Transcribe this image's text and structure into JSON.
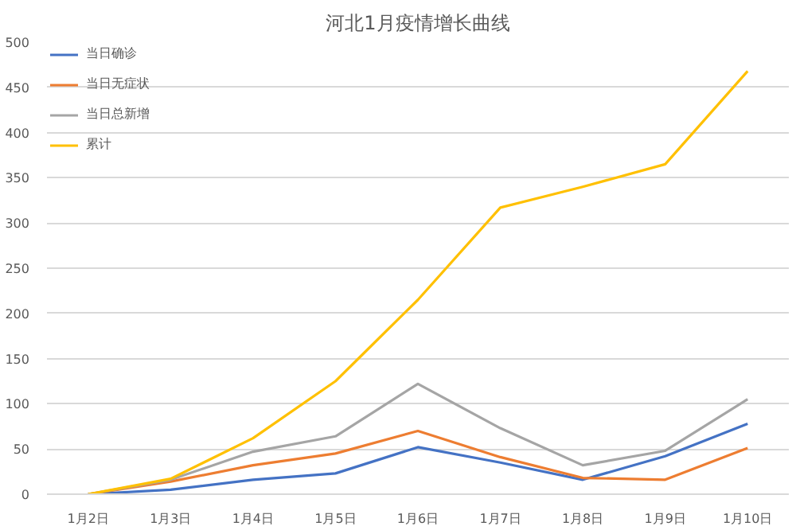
{
  "chart_data": {
    "type": "line",
    "title": "河北1月疫情增长曲线",
    "categories": [
      "1月2日",
      "1月3日",
      "1月4日",
      "1月5日",
      "1月6日",
      "1月7日",
      "1月8日",
      "1月9日",
      "1月10日"
    ],
    "series": [
      {
        "name": "当日确诊",
        "color": "#4472c4",
        "values": [
          0,
          5,
          16,
          23,
          52,
          35,
          16,
          42,
          78
        ]
      },
      {
        "name": "当日无症状",
        "color": "#ed7d31",
        "values": [
          0,
          14,
          32,
          45,
          70,
          41,
          18,
          16,
          51
        ]
      },
      {
        "name": "当日总新增",
        "color": "#a5a5a5",
        "values": [
          0,
          16,
          47,
          64,
          122,
          73,
          32,
          48,
          105
        ]
      },
      {
        "name": "累计",
        "color": "#ffc000",
        "values": [
          0,
          17,
          62,
          125,
          215,
          317,
          340,
          365,
          468
        ]
      }
    ],
    "ylim": [
      0,
      500
    ],
    "yticks": [
      0,
      50,
      100,
      150,
      200,
      250,
      300,
      350,
      400,
      450,
      500
    ],
    "grid": "y",
    "legend": "top left",
    "marker": "none",
    "line_style": "solid"
  }
}
